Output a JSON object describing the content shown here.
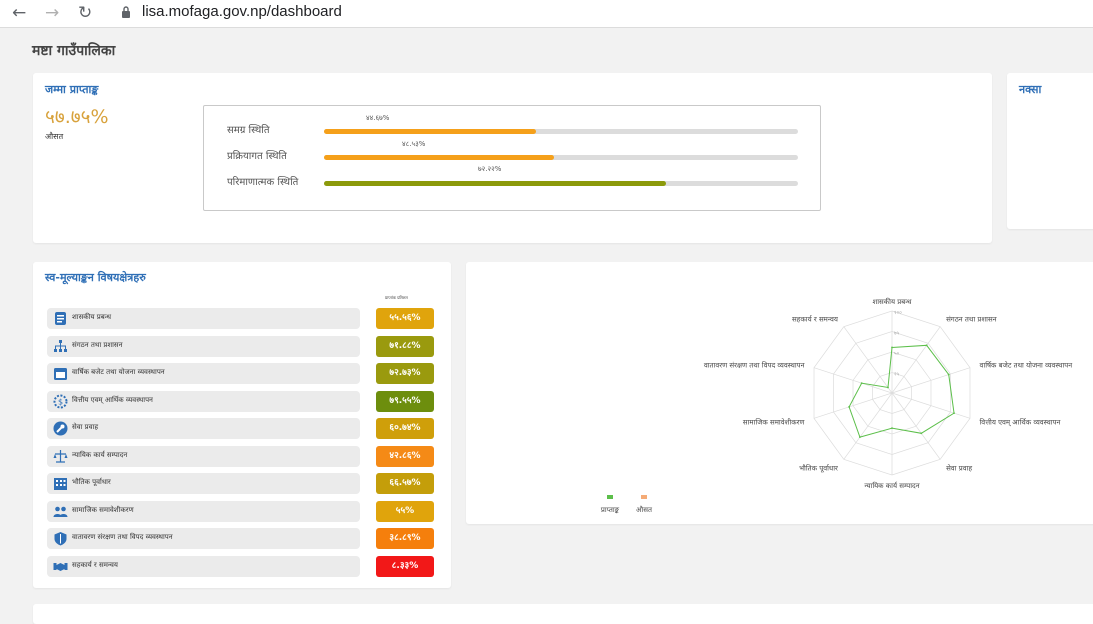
{
  "browser": {
    "url": "lisa.mofaga.gov.np/dashboard"
  },
  "page_title": "मष्टा गाउँपालिका",
  "score_card": {
    "title": "जम्मा प्राप्ताङ्क",
    "value": "५७.७५%",
    "subtitle": "औसत",
    "statuses": [
      {
        "label": "समग्र स्थिति",
        "value_label": "४४.६७%",
        "value": 44.67,
        "color": "#f5a01a"
      },
      {
        "label": "प्रक्रियागत स्थिति",
        "value_label": "४८.५३%",
        "value": 48.53,
        "color": "#f5a01a"
      },
      {
        "label": "परिमाणात्मक स्थिति",
        "value_label": "७२.२२%",
        "value": 72.22,
        "color": "#8c9a0b"
      }
    ]
  },
  "map_card": {
    "title": "नक्सा"
  },
  "areas_card": {
    "title": "स्व-मूल्याङ्कन विषयक्षेत्रहरु",
    "column_header": "प्राप्तांक प्रतिशत",
    "rows": [
      {
        "label": "शासकीय प्रबन्ध",
        "value": "५५.५६%",
        "icon": "governance-icon",
        "color": "#e0a40c"
      },
      {
        "label": "संगठन तथा प्रशासन",
        "value": "७१.८८%",
        "icon": "organization-icon",
        "color": "#9a9a0e"
      },
      {
        "label": "वार्षिक बजेट तथा योजना व्यवस्थापन",
        "value": "७२.७३%",
        "icon": "calendar-icon",
        "color": "#9a9a0e"
      },
      {
        "label": "वित्तीय एवम् आर्थिक व्यवस्थापन",
        "value": "७९.५५%",
        "icon": "finance-gear-icon",
        "color": "#6d8e0d"
      },
      {
        "label": "सेवा प्रवाह",
        "value": "६०.७४%",
        "icon": "service-wrench-icon",
        "color": "#cf9f0a"
      },
      {
        "label": "न्यायिक कार्य सम्पादन",
        "value": "४२.८६%",
        "icon": "justice-scale-icon",
        "color": "#f58a16"
      },
      {
        "label": "भौतिक पूर्वाधार",
        "value": "६६.५७%",
        "icon": "building-icon",
        "color": "#c49e0a"
      },
      {
        "label": "सामाजिक समावेशीकरण",
        "value": "५५%",
        "icon": "people-icon",
        "color": "#e0a40c"
      },
      {
        "label": "वातावरण संरक्षण तथा विपद व्यवस्थापन",
        "value": "३८.८९%",
        "icon": "shield-icon",
        "color": "#f57f0c"
      },
      {
        "label": "सहकार्य र समन्वय",
        "value": "८.३३%",
        "icon": "handshake-icon",
        "color": "#f21818"
      }
    ]
  },
  "chart_data": {
    "type": "radar",
    "axes": [
      "शासकीय प्रबन्ध",
      "संगठन तथा प्रशासन",
      "वार्षिक बजेट तथा योजना व्यवस्थापन",
      "वित्तीय एवम् आर्थिक व्यवस्थापन",
      "सेवा प्रवाह",
      "न्यायिक कार्य सम्पादन",
      "भौतिक पूर्वाधार",
      "सामाजिक समावेशीकरण",
      "वातावरण संरक्षण तथा विपद व्यवस्थापन",
      "सहकार्य र समन्वय"
    ],
    "ticks": [
      "२५",
      "५०",
      "७५",
      "१००"
    ],
    "range": [
      0,
      100
    ],
    "series": [
      {
        "name": "प्राप्ताङ्क",
        "values": [
          55.56,
          71.88,
          72.73,
          79.55,
          60.74,
          42.86,
          66.57,
          55,
          38.89,
          8.33
        ],
        "color": "#5cbf4a"
      },
      {
        "name": "औसत",
        "values": [],
        "color": "#f5ab76"
      }
    ],
    "legend_position": "bottom-left"
  }
}
